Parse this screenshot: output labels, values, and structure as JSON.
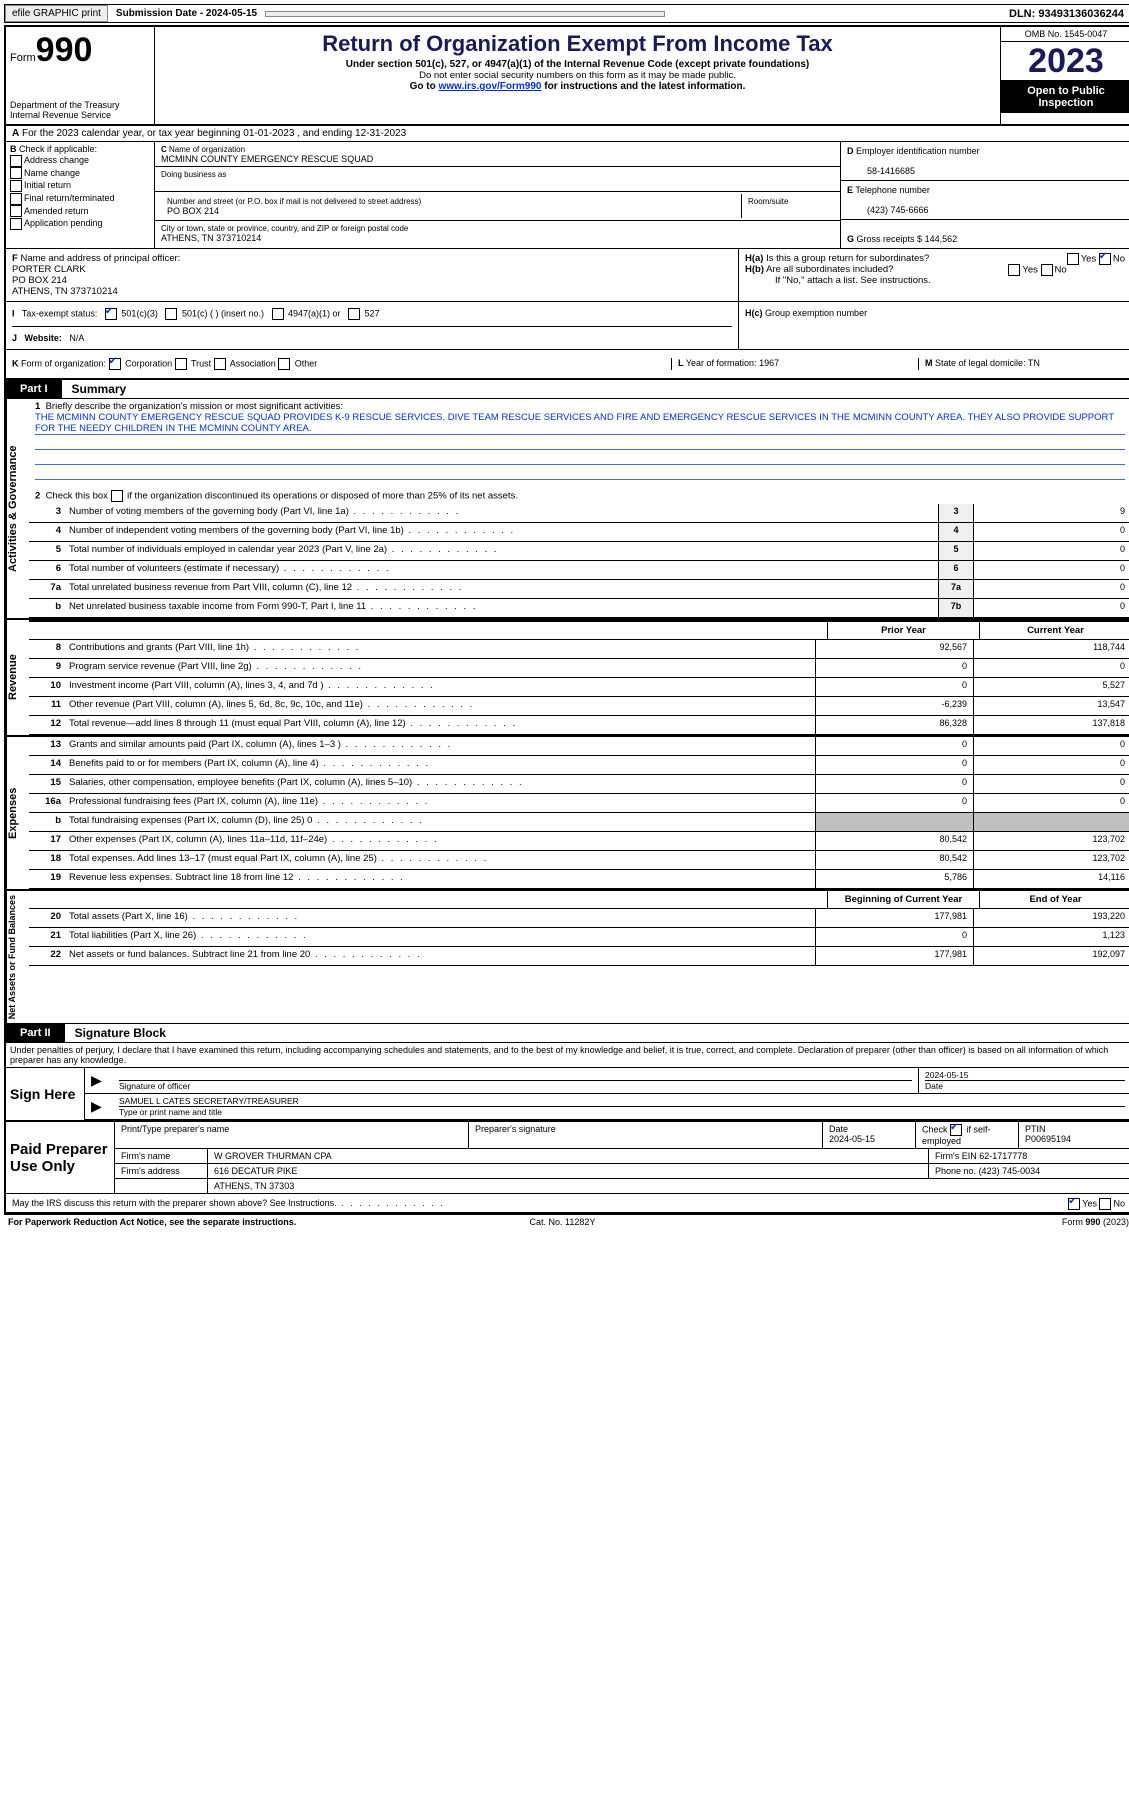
{
  "topbar": {
    "efile": "efile GRAPHIC print",
    "submission_label": "Submission Date - 2024-05-15",
    "dln": "DLN: 93493136036244"
  },
  "header": {
    "form_label": "Form",
    "form_no": "990",
    "dept": "Department of the Treasury Internal Revenue Service",
    "title": "Return of Organization Exempt From Income Tax",
    "sub1": "Under section 501(c), 527, or 4947(a)(1) of the Internal Revenue Code (except private foundations)",
    "sub2": "Do not enter social security numbers on this form as it may be made public.",
    "sub3_pre": "Go to ",
    "sub3_link": "www.irs.gov/Form990",
    "sub3_post": " for instructions and the latest information.",
    "omb": "OMB No. 1545-0047",
    "year": "2023",
    "open": "Open to Public Inspection"
  },
  "rowA": "For the 2023 calendar year, or tax year beginning 01-01-2023   , and ending 12-31-2023",
  "B": {
    "label": "Check if applicable:",
    "items": [
      "Address change",
      "Name change",
      "Initial return",
      "Final return/terminated",
      "Amended return",
      "Application pending"
    ]
  },
  "C": {
    "name_label": "Name of organization",
    "name": "MCMINN COUNTY EMERGENCY RESCUE SQUAD",
    "dba_label": "Doing business as",
    "dba": "",
    "addr_label": "Number and street (or P.O. box if mail is not delivered to street address)",
    "addr": "PO BOX 214",
    "room_label": "Room/suite",
    "city_label": "City or town, state or province, country, and ZIP or foreign postal code",
    "city": "ATHENS, TN  373710214"
  },
  "D": {
    "label": "Employer identification number",
    "val": "58-1416685"
  },
  "E": {
    "label": "Telephone number",
    "val": "(423) 745-6666"
  },
  "G": {
    "label": "Gross receipts $",
    "val": "144,562"
  },
  "F": {
    "label": "Name and address of principal officer:",
    "name": "PORTER CLARK",
    "addr1": "PO BOX 214",
    "addr2": "ATHENS, TN  373710214"
  },
  "H": {
    "a": "Is this a group return for subordinates?",
    "b": "Are all subordinates included?",
    "note": "If \"No,\" attach a list. See instructions.",
    "c": "Group exemption number"
  },
  "I": {
    "label": "Tax-exempt status:",
    "opt1": "501(c)(3)",
    "opt2": "501(c) (   ) (insert no.)",
    "opt3": "4947(a)(1) or",
    "opt4": "527"
  },
  "J": {
    "label": "Website:",
    "val": "N/A"
  },
  "K": {
    "label": "Form of organization:",
    "opts": [
      "Corporation",
      "Trust",
      "Association",
      "Other"
    ]
  },
  "L": {
    "label": "Year of formation:",
    "val": "1967"
  },
  "M": {
    "label": "State of legal domicile:",
    "val": "TN"
  },
  "part1": {
    "tab": "Part I",
    "title": "Summary"
  },
  "mission_label": "Briefly describe the organization's mission or most significant activities:",
  "mission": "THE MCMINN COUNTY EMERGENCY RESCUE SQUAD PROVIDES K-9 RESCUE SERVICES, DIVE TEAM RESCUE SERVICES AND FIRE AND EMERGENCY RESCUE SERVICES IN THE MCMINN COUNTY AREA. THEY ALSO PROVIDE SUPPORT FOR THE NEEDY CHILDREN IN THE MCMINN COUNTY AREA.",
  "line2": "Check this box      if the organization discontinued its operations or disposed of more than 25% of its net assets.",
  "governance": [
    {
      "n": "3",
      "d": "Number of voting members of the governing body (Part VI, line 1a)",
      "b": "3",
      "v": "9"
    },
    {
      "n": "4",
      "d": "Number of independent voting members of the governing body (Part VI, line 1b)",
      "b": "4",
      "v": "0"
    },
    {
      "n": "5",
      "d": "Total number of individuals employed in calendar year 2023 (Part V, line 2a)",
      "b": "5",
      "v": "0"
    },
    {
      "n": "6",
      "d": "Total number of volunteers (estimate if necessary)",
      "b": "6",
      "v": "0"
    },
    {
      "n": "7a",
      "d": "Total unrelated business revenue from Part VIII, column (C), line 12",
      "b": "7a",
      "v": "0"
    },
    {
      "n": "b",
      "d": "Net unrelated business taxable income from Form 990-T, Part I, line 11",
      "b": "7b",
      "v": "0"
    }
  ],
  "colheaders": {
    "prior": "Prior Year",
    "curr": "Current Year"
  },
  "revenue": [
    {
      "n": "8",
      "d": "Contributions and grants (Part VIII, line 1h)",
      "p": "92,567",
      "c": "118,744"
    },
    {
      "n": "9",
      "d": "Program service revenue (Part VIII, line 2g)",
      "p": "0",
      "c": "0"
    },
    {
      "n": "10",
      "d": "Investment income (Part VIII, column (A), lines 3, 4, and 7d )",
      "p": "0",
      "c": "5,527"
    },
    {
      "n": "11",
      "d": "Other revenue (Part VIII, column (A), lines 5, 6d, 8c, 9c, 10c, and 11e)",
      "p": "-6,239",
      "c": "13,547"
    },
    {
      "n": "12",
      "d": "Total revenue—add lines 8 through 11 (must equal Part VIII, column (A), line 12)",
      "p": "86,328",
      "c": "137,818"
    }
  ],
  "expenses": [
    {
      "n": "13",
      "d": "Grants and similar amounts paid (Part IX, column (A), lines 1–3 )",
      "p": "0",
      "c": "0"
    },
    {
      "n": "14",
      "d": "Benefits paid to or for members (Part IX, column (A), line 4)",
      "p": "0",
      "c": "0"
    },
    {
      "n": "15",
      "d": "Salaries, other compensation, employee benefits (Part IX, column (A), lines 5–10)",
      "p": "0",
      "c": "0"
    },
    {
      "n": "16a",
      "d": "Professional fundraising fees (Part IX, column (A), line 11e)",
      "p": "0",
      "c": "0"
    },
    {
      "n": "b",
      "d": "Total fundraising expenses (Part IX, column (D), line 25) 0",
      "gray": true
    },
    {
      "n": "17",
      "d": "Other expenses (Part IX, column (A), lines 11a–11d, 11f–24e)",
      "p": "80,542",
      "c": "123,702"
    },
    {
      "n": "18",
      "d": "Total expenses. Add lines 13–17 (must equal Part IX, column (A), line 25)",
      "p": "80,542",
      "c": "123,702"
    },
    {
      "n": "19",
      "d": "Revenue less expenses. Subtract line 18 from line 12",
      "p": "5,786",
      "c": "14,116"
    }
  ],
  "colheaders2": {
    "prior": "Beginning of Current Year",
    "curr": "End of Year"
  },
  "net": [
    {
      "n": "20",
      "d": "Total assets (Part X, line 16)",
      "p": "177,981",
      "c": "193,220"
    },
    {
      "n": "21",
      "d": "Total liabilities (Part X, line 26)",
      "p": "0",
      "c": "1,123"
    },
    {
      "n": "22",
      "d": "Net assets or fund balances. Subtract line 21 from line 20",
      "p": "177,981",
      "c": "192,097"
    }
  ],
  "part2": {
    "tab": "Part II",
    "title": "Signature Block"
  },
  "perjury": "Under penalties of perjury, I declare that I have examined this return, including accompanying schedules and statements, and to the best of my knowledge and belief, it is true, correct, and complete. Declaration of preparer (other than officer) is based on all information of which preparer has any knowledge.",
  "sign": {
    "label": "Sign Here",
    "sig_label": "Signature of officer",
    "date_label": "Date",
    "date": "2024-05-15",
    "name": "SAMUEL L CATES SECRETARY/TREASURER",
    "name_label": "Type or print name and title"
  },
  "paid": {
    "label": "Paid Preparer Use Only",
    "h1": "Print/Type preparer's name",
    "h2": "Preparer's signature",
    "h3": "Date",
    "h4_a": "Check",
    "h4_b": "if self-employed",
    "h5": "PTIN",
    "date": "2024-05-15",
    "ptin": "P00695194",
    "firm_label": "Firm's name",
    "firm": "W GROVER THURMAN CPA",
    "ein_label": "Firm's EIN",
    "ein": "62-1717778",
    "addr_label": "Firm's address",
    "addr1": "616 DECATUR PIKE",
    "addr2": "ATHENS, TN  37303",
    "phone_label": "Phone no.",
    "phone": "(423) 745-0034"
  },
  "discuss": "May the IRS discuss this return with the preparer shown above? See Instructions.",
  "footer": {
    "l": "For Paperwork Reduction Act Notice, see the separate instructions.",
    "m": "Cat. No. 11282Y",
    "r": "Form 990 (2023)"
  }
}
